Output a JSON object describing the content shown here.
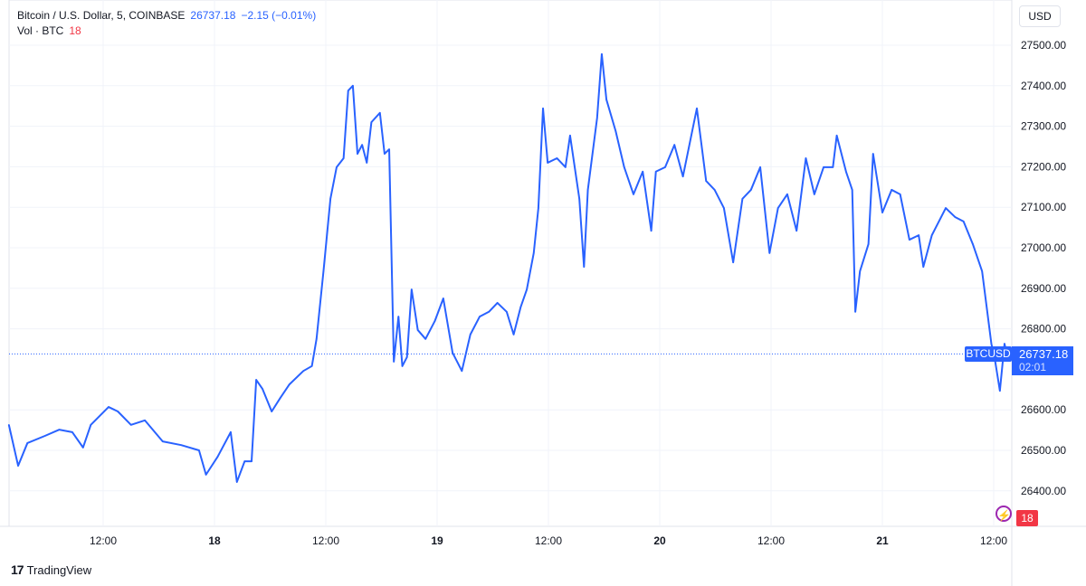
{
  "legend": {
    "symbol": "Bitcoin / U.S. Dollar, 5, COINBASE",
    "last": "26737.18",
    "change": "−2.15 (−0.01%)",
    "vol_label": "Vol · BTC",
    "vol_value": "18"
  },
  "currency": "USD",
  "price_tag": {
    "symbol": "BTCUSD",
    "price": "26737.18",
    "countdown": "02:01"
  },
  "vol_tag": "18",
  "logo": "TradingView",
  "colors": {
    "line": "#2962ff",
    "up": "#26a69a",
    "down": "#f23645",
    "grid": "#f0f3fa"
  },
  "chart_data": {
    "type": "line",
    "ylim": [
      26340,
      27560
    ],
    "grid": true,
    "y_ticks": [
      "27500.00",
      "27400.00",
      "27300.00",
      "27200.00",
      "27100.00",
      "27000.00",
      "26900.00",
      "26800.00",
      "26600.00",
      "26500.00",
      "26400.00"
    ],
    "x_ticks": [
      "12:00",
      "18",
      "12:00",
      "19",
      "12:00",
      "20",
      "12:00",
      "21",
      "12:00"
    ],
    "series": [
      {
        "points": [
          [
            "17 01:50",
            26563
          ],
          [
            "17 02:50",
            26462
          ],
          [
            "17 03:50",
            26518
          ],
          [
            "17 05:45",
            26536
          ],
          [
            "17 07:15",
            26551
          ],
          [
            "17 08:40",
            26545
          ],
          [
            "17 09:50",
            26507
          ],
          [
            "17 10:40",
            26563
          ],
          [
            "17 12:35",
            26607
          ],
          [
            "17 13:35",
            26596
          ],
          [
            "17 15:00",
            26563
          ],
          [
            "17 16:30",
            26574
          ],
          [
            "17 18:25",
            26522
          ],
          [
            "17 20:25",
            26513
          ],
          [
            "17 22:20",
            26500
          ],
          [
            "17 23:05",
            26440
          ],
          [
            "18 00:20",
            26484
          ],
          [
            "18 01:45",
            26545
          ],
          [
            "18 02:25",
            26422
          ],
          [
            "18 03:15",
            26473
          ],
          [
            "18 04:00",
            26473
          ],
          [
            "18 04:30",
            26674
          ],
          [
            "18 05:10",
            26652
          ],
          [
            "18 06:10",
            26596
          ],
          [
            "18 07:05",
            26629
          ],
          [
            "18 08:05",
            26663
          ],
          [
            "18 09:35",
            26696
          ],
          [
            "18 10:30",
            26708
          ],
          [
            "18 11:00",
            26775
          ],
          [
            "18 11:45",
            26942
          ],
          [
            "18 12:30",
            27121
          ],
          [
            "18 13:10",
            27199
          ],
          [
            "18 13:55",
            27221
          ],
          [
            "18 14:25",
            27388
          ],
          [
            "18 14:55",
            27400
          ],
          [
            "18 15:25",
            27232
          ],
          [
            "18 15:55",
            27254
          ],
          [
            "18 16:25",
            27210
          ],
          [
            "18 16:55",
            27310
          ],
          [
            "18 17:50",
            27333
          ],
          [
            "18 18:20",
            27232
          ],
          [
            "18 18:50",
            27243
          ],
          [
            "18 19:20",
            26719
          ],
          [
            "18 19:50",
            26830
          ],
          [
            "18 20:15",
            26708
          ],
          [
            "18 20:45",
            26730
          ],
          [
            "18 21:15",
            26897
          ],
          [
            "18 21:55",
            26797
          ],
          [
            "18 22:45",
            26775
          ],
          [
            "18 23:45",
            26819
          ],
          [
            "19 00:40",
            26875
          ],
          [
            "19 01:40",
            26741
          ],
          [
            "19 02:40",
            26696
          ],
          [
            "19 03:35",
            26786
          ],
          [
            "19 04:35",
            26830
          ],
          [
            "19 05:35",
            26842
          ],
          [
            "19 06:30",
            26864
          ],
          [
            "19 07:30",
            26842
          ],
          [
            "19 08:15",
            26786
          ],
          [
            "19 09:00",
            26853
          ],
          [
            "19 09:40",
            26897
          ],
          [
            "19 10:25",
            26987
          ],
          [
            "19 10:55",
            27098
          ],
          [
            "19 11:25",
            27344
          ],
          [
            "19 11:55",
            27210
          ],
          [
            "19 12:55",
            27221
          ],
          [
            "19 13:50",
            27199
          ],
          [
            "19 14:20",
            27277
          ],
          [
            "19 15:20",
            27121
          ],
          [
            "19 15:50",
            26953
          ],
          [
            "19 16:15",
            27143
          ],
          [
            "19 17:15",
            27321
          ],
          [
            "19 17:45",
            27478
          ],
          [
            "19 18:15",
            27366
          ],
          [
            "19 19:15",
            27288
          ],
          [
            "19 20:10",
            27199
          ],
          [
            "19 21:10",
            27132
          ],
          [
            "19 22:10",
            27188
          ],
          [
            "19 23:05",
            27042
          ],
          [
            "19 23:35",
            27188
          ],
          [
            "20 00:35",
            27199
          ],
          [
            "20 01:35",
            27254
          ],
          [
            "20 02:30",
            27176
          ],
          [
            "20 03:30",
            27288
          ],
          [
            "20 04:00",
            27344
          ],
          [
            "20 05:00",
            27165
          ],
          [
            "20 05:55",
            27143
          ],
          [
            "20 06:55",
            27098
          ],
          [
            "20 07:55",
            26964
          ],
          [
            "20 08:55",
            27121
          ],
          [
            "20 09:50",
            27143
          ],
          [
            "20 10:50",
            27199
          ],
          [
            "20 11:50",
            26987
          ],
          [
            "20 12:45",
            27098
          ],
          [
            "20 13:45",
            27132
          ],
          [
            "20 14:45",
            27042
          ],
          [
            "20 15:45",
            27221
          ],
          [
            "20 16:40",
            27132
          ],
          [
            "20 17:40",
            27199
          ],
          [
            "20 18:40",
            27199
          ],
          [
            "20 19:05",
            27277
          ],
          [
            "20 20:05",
            27188
          ],
          [
            "20 20:45",
            27143
          ],
          [
            "20 21:05",
            26842
          ],
          [
            "20 21:35",
            26942
          ],
          [
            "20 22:30",
            27009
          ],
          [
            "20 23:00",
            27232
          ],
          [
            "21 00:00",
            27087
          ],
          [
            "21 01:00",
            27143
          ],
          [
            "21 01:55",
            27132
          ],
          [
            "21 02:55",
            27020
          ],
          [
            "21 03:55",
            27031
          ],
          [
            "21 04:25",
            26953
          ],
          [
            "21 05:20",
            27031
          ],
          [
            "21 06:50",
            27098
          ],
          [
            "21 07:50",
            27076
          ],
          [
            "21 08:45",
            27065
          ],
          [
            "21 09:45",
            27009
          ],
          [
            "21 10:45",
            26942
          ],
          [
            "21 11:45",
            26763
          ],
          [
            "21 12:10",
            26719
          ],
          [
            "21 12:40",
            26647
          ],
          [
            "21 13:10",
            26763
          ],
          [
            "21 13:25",
            26738
          ]
        ]
      }
    ]
  }
}
